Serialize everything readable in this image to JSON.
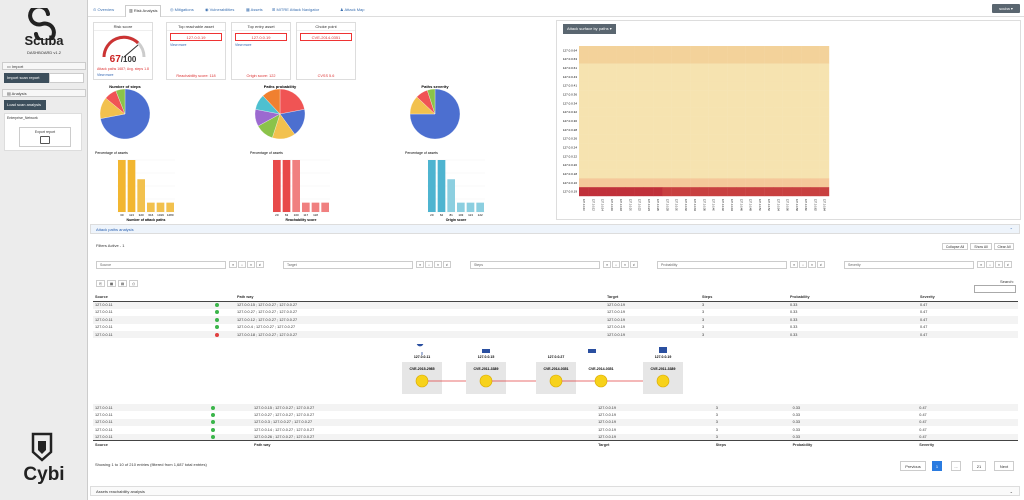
{
  "app": {
    "name": "Scuba",
    "dashboard": "DASHBOARD v1.2",
    "footer_logo": "Cybi"
  },
  "sidebar": {
    "import_label": "Import",
    "import_btn": "Import scan report",
    "analysis_label": "Analysis",
    "load_btn": "Load scan analysis",
    "card_title": "Enterprise_Network",
    "export_label": "Export report"
  },
  "tabs": [
    {
      "label": "Overview"
    },
    {
      "label": "Risk Analysis"
    },
    {
      "label": "Mitigations"
    },
    {
      "label": "Vulnerabilities"
    },
    {
      "label": "Assets"
    },
    {
      "label": "MITRE Attack Navigator"
    },
    {
      "label": "Attack Map"
    }
  ],
  "user": "scuba",
  "kpi": {
    "risk_title": "Risk score",
    "risk_value": "67",
    "risk_max": "/100",
    "risk_sub": "Attack paths 1687; Avg. steps 1.8",
    "view_more": "View more",
    "reach_title": "Top reachable asset",
    "reach_value": "127.0.0.19",
    "reach_foot": "Reachability score: 118",
    "entry_title": "Top entry asset",
    "entry_value": "127.0.0.19",
    "entry_foot": "Origin score: 122",
    "choke_title": "Choke point",
    "choke_value": "CVE-2014-0351",
    "choke_foot": "CVSS 5.6"
  },
  "charts": {
    "steps": {
      "title": "Number of steps",
      "pie": [
        {
          "v": 72,
          "c": "#4c6fd0"
        },
        {
          "v": 14,
          "c": "#f2c14e"
        },
        {
          "v": 8,
          "c": "#f05454"
        },
        {
          "v": 6,
          "c": "#8bc34a"
        }
      ],
      "ylabel": "Percentage of assets",
      "xlabel": "Number of attack paths",
      "bars": [
        {
          "v": 100,
          "c": "#f2b630"
        },
        {
          "v": 100,
          "c": "#f2b630"
        },
        {
          "v": 63,
          "c": "#f2c14e"
        },
        {
          "v": 18,
          "c": "#f2c14e"
        },
        {
          "v": 18,
          "c": "#f2c14e"
        },
        {
          "v": 18,
          "c": "#f2c14e"
        }
      ],
      "cats": [
        "30",
        "113",
        "320",
        "616",
        "1019",
        "1280"
      ]
    },
    "prob": {
      "title": "Paths probability",
      "pie": [
        {
          "v": 22,
          "c": "#f05454"
        },
        {
          "v": 18,
          "c": "#4c6fd0"
        },
        {
          "v": 15,
          "c": "#f2c14e"
        },
        {
          "v": 12,
          "c": "#8bc34a"
        },
        {
          "v": 11,
          "c": "#9c6ad0"
        },
        {
          "v": 10,
          "c": "#4ec0d0"
        },
        {
          "v": 12,
          "c": "#f08030"
        }
      ],
      "ylabel": "Percentage of assets",
      "xlabel": "Reachability score",
      "bars": [
        {
          "v": 100,
          "c": "#e84a4a"
        },
        {
          "v": 100,
          "c": "#e84a4a"
        },
        {
          "v": 100,
          "c": "#f08080"
        },
        {
          "v": 18,
          "c": "#f08080"
        },
        {
          "v": 18,
          "c": "#f08080"
        },
        {
          "v": 18,
          "c": "#f08080"
        }
      ],
      "cats": [
        "20",
        "63",
        "100",
        "117",
        "118",
        ""
      ]
    },
    "sev": {
      "title": "Paths severity",
      "pie": [
        {
          "v": 75,
          "c": "#4c6fd0"
        },
        {
          "v": 12,
          "c": "#f2c14e"
        },
        {
          "v": 8,
          "c": "#f05454"
        },
        {
          "v": 5,
          "c": "#8bc34a"
        }
      ],
      "ylabel": "Percentage of assets",
      "xlabel": "Origin score",
      "bars": [
        {
          "v": 100,
          "c": "#4eb4d0"
        },
        {
          "v": 100,
          "c": "#4eb4d0"
        },
        {
          "v": 63,
          "c": "#8ccfe0"
        },
        {
          "v": 18,
          "c": "#8ccfe0"
        },
        {
          "v": 18,
          "c": "#8ccfe0"
        },
        {
          "v": 18,
          "c": "#8ccfe0"
        }
      ],
      "cats": [
        "20",
        "62",
        "81",
        "103",
        "113",
        "122"
      ]
    }
  },
  "heatmap": {
    "button": "Attack surface by paths",
    "rows": [
      "127.0.0.64",
      "127.0.0.63",
      "127.0.0.61",
      "127.0.0.43",
      "127.0.0.41",
      "127.0.0.36",
      "127.0.0.34",
      "127.0.0.32",
      "127.0.0.30",
      "127.0.0.28",
      "127.0.0.26",
      "127.0.0.24",
      "127.0.0.22",
      "127.0.0.20",
      "127.0.0.18",
      "127.0.0.16",
      "127.0.0.19"
    ],
    "cols": [
      "127.0.0.10",
      "127.0.0.12",
      "127.0.0.14",
      "127.0.0.16",
      "127.0.0.18",
      "127.0.0.20",
      "127.0.0.22",
      "127.0.0.24",
      "127.0.0.26",
      "127.0.0.28",
      "127.0.0.30",
      "127.0.0.32",
      "127.0.0.34",
      "127.0.0.36",
      "127.0.0.40",
      "127.0.0.42",
      "127.0.0.44",
      "127.0.0.46",
      "127.0.0.48",
      "127.0.0.50",
      "127.0.0.52",
      "127.0.0.54",
      "127.0.0.56",
      "127.0.0.58",
      "127.0.0.60",
      "127.0.0.62",
      "127.0.0.64"
    ],
    "scale_min": "0",
    "scale_max": "30"
  },
  "attack_paths": {
    "section": "Attack paths analysis",
    "filters_active": "Filters Active - 1",
    "collapse": "Collapse All",
    "show_all": "Show All",
    "clear_all": "Clear All",
    "filters": [
      "Source",
      "Target",
      "Steps",
      "Probability",
      "Severity"
    ],
    "search": "Search:",
    "columns": [
      "Source",
      "",
      "Path way",
      "Target",
      "Steps",
      "Probability",
      "Severity"
    ],
    "rows_top": [
      [
        "127.0.0.11",
        "g",
        "127.0.0.15 ; 127.0.0.27 ; 127.0.0.27",
        "127.0.0.19",
        "3",
        "0.33",
        "0.47"
      ],
      [
        "127.0.0.11",
        "g",
        "127.0.0.27 ; 127.0.0.27 ; 127.0.0.27",
        "127.0.0.19",
        "3",
        "0.33",
        "0.47"
      ],
      [
        "127.0.0.11",
        "g",
        "127.0.0.12 ; 127.0.0.27 ; 127.0.0.27",
        "127.0.0.19",
        "3",
        "0.33",
        "0.47"
      ],
      [
        "127.0.0.11",
        "g",
        "127.0.0.4 ; 127.0.0.27 ; 127.0.0.27",
        "127.0.0.19",
        "3",
        "0.33",
        "0.47"
      ],
      [
        "127.0.0.11",
        "r",
        "127.0.0.18 ; 127.0.0.27 ; 127.0.0.27",
        "127.0.0.19",
        "3",
        "0.33",
        "0.47"
      ]
    ],
    "rows_bottom": [
      [
        "127.0.0.11",
        "g",
        "127.0.0.15 ; 127.0.0.27 ; 127.0.0.27",
        "127.0.0.19",
        "3",
        "0.33",
        "0.47"
      ],
      [
        "127.0.0.11",
        "g",
        "127.0.0.27 ; 127.0.0.27 ; 127.0.0.27",
        "127.0.0.19",
        "3",
        "0.33",
        "0.47"
      ],
      [
        "127.0.0.11",
        "g",
        "127.0.0.3 ; 127.0.0.27 ; 127.0.0.27",
        "127.0.0.19",
        "3",
        "0.33",
        "0.47"
      ],
      [
        "127.0.0.11",
        "g",
        "127.0.0.14 ; 127.0.0.27 ; 127.0.0.27",
        "127.0.0.19",
        "3",
        "0.33",
        "0.47"
      ],
      [
        "127.0.0.11",
        "g",
        "127.0.0.26 ; 127.0.0.27 ; 127.0.0.27",
        "127.0.0.19",
        "3",
        "0.33",
        "0.47"
      ]
    ],
    "graph_nodes": [
      {
        "host": "127.0.0.11",
        "cve": "CVE-2015-2985"
      },
      {
        "host": "127.0.0.15",
        "cve": "CVE-2011-3389"
      },
      {
        "host": "127.0.0.27",
        "cve": "CVE-2014-0351"
      },
      {
        "host": "",
        "cve": "CVE-2014-0351"
      },
      {
        "host": "127.0.0.19",
        "cve": "CVE-2011-3389"
      }
    ],
    "info": "Showing 1 to 10 of 210 entries (filtered from 1,687 total entries)",
    "pager": {
      "prev": "Previous",
      "p1": "1",
      "dots": "...",
      "last": "21",
      "next": "Next"
    }
  },
  "reach_section": "Assets reachability analysis"
}
